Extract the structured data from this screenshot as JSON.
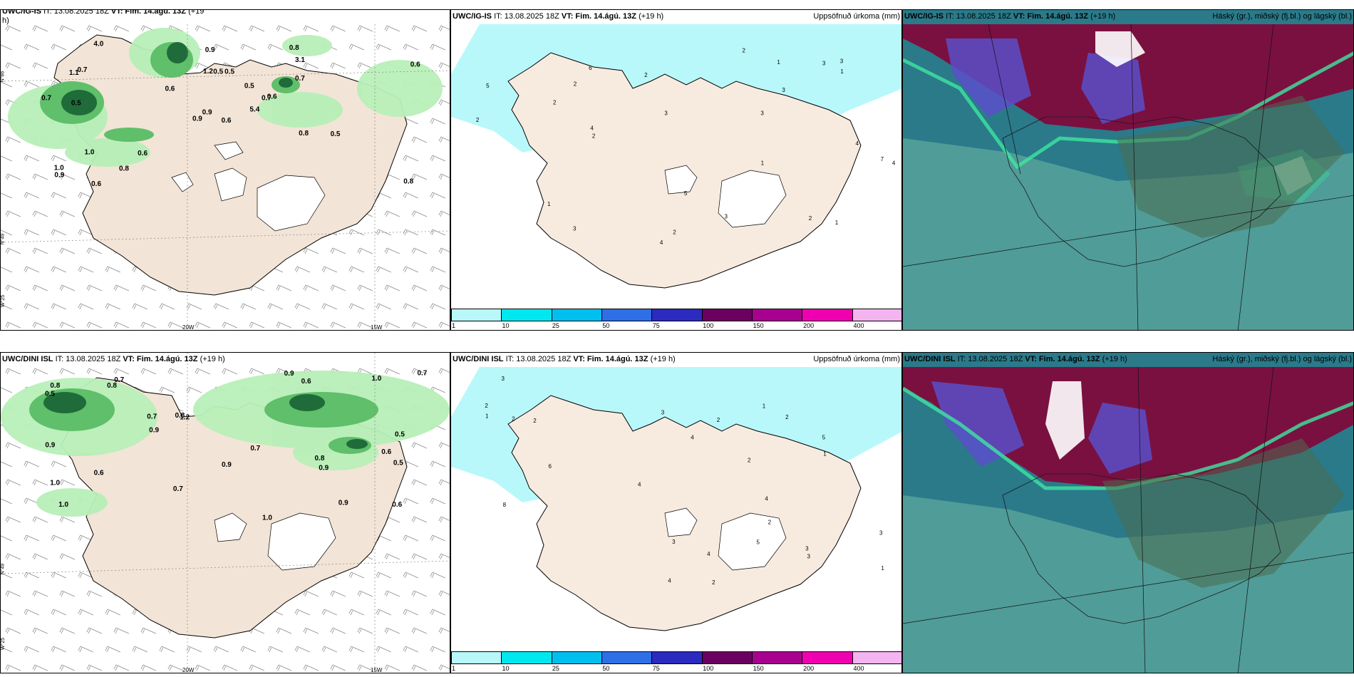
{
  "panels": [
    {
      "id": "p1",
      "model": "UWC/IG-IS",
      "run": "IT: 13.08.2025 18Z",
      "valid": "VT: Fim. 14.ágú. 13Z",
      "lead": "(+19",
      "lead2": "h)",
      "field": ""
    },
    {
      "id": "p2",
      "model": "UWC/IG-IS",
      "run": "IT: 13.08.2025 18Z",
      "valid": "VT: Fim. 14.ágú. 13Z",
      "lead": "(+19 h)",
      "field": "Uppsöfnuð úrkoma (mm)"
    },
    {
      "id": "p3",
      "model": "UWC/IG-IS",
      "run": "IT: 13.08.2025 18Z",
      "valid": "VT: Fim. 14.ágú. 13Z",
      "lead": "(+19 h)",
      "field": "Háský (gr.), miðský (fj.bl.) og lágský (bl.)"
    },
    {
      "id": "p4",
      "model": "UWC/DINI ISL",
      "run": "IT: 13.08.2025 18Z",
      "valid": "VT: Fim. 14.ágú. 13Z",
      "lead": "(+19 h)",
      "field": ""
    },
    {
      "id": "p5",
      "model": "UWC/DINI ISL",
      "run": "IT: 13.08.2025 18Z",
      "valid": "VT: Fim. 14.ágú. 13Z",
      "lead": "(+19 h)",
      "field": "Uppsöfnuð úrkoma (mm)"
    },
    {
      "id": "p6",
      "model": "UWC/DINI ISL",
      "run": "IT: 13.08.2025 18Z",
      "valid": "VT: Fim. 14.ágú. 13Z",
      "lead": "(+19 h)",
      "field": "Háský (gr.), miðský (fj.bl.) og lágský (bl.)"
    }
  ],
  "colorbar": {
    "labels": [
      "1",
      "10",
      "25",
      "50",
      "75",
      "100",
      "150",
      "200",
      "400"
    ],
    "colors": [
      "#b8f8fb",
      "#00e8ef",
      "#00bfef",
      "#2f6fe6",
      "#2b2bbf",
      "#6b0060",
      "#a8008f",
      "#ef00b0",
      "#f4b4f0"
    ]
  },
  "axes": {
    "lon1": "20W",
    "lon2": "15W",
    "lat_left_a": "N°66",
    "lat_left_b": "N°49",
    "lat_left_c": "W°25"
  },
  "precip_labels_top": [
    "0.6",
    "1.1",
    "0.9",
    "1.0",
    "0.7",
    "0.6",
    "0.8",
    "0.5",
    "3.1",
    "5.4",
    "4.0",
    "0.8",
    "0.5",
    "0.6",
    "0.9",
    "0.7",
    "0.6",
    "1.2",
    "0.5",
    "1.0",
    "0.6",
    "0.9",
    "0.8",
    "0.5",
    "0.6",
    "0.5",
    "0.7",
    "0.9",
    "0.7",
    "0.8"
  ],
  "precip_labels_bottom": [
    "0.8",
    "0.6",
    "1.0",
    "0.7",
    "1.2",
    "0.9",
    "1.0",
    "0.6",
    "0.7",
    "1.0",
    "0.5",
    "0.9",
    "0.8",
    "0.6",
    "0.7",
    "0.5",
    "0.9",
    "0.7",
    "0.8",
    "0.6",
    "0.7",
    "1.0",
    "0.9",
    "0.5",
    "0.9",
    "0.8",
    "0.9"
  ],
  "accum_labels_top": [
    "5",
    "2",
    "3",
    "2",
    "3",
    "4",
    "1",
    "2",
    "3",
    "4",
    "7",
    "6",
    "3",
    "1",
    "2",
    "3",
    "4",
    "2",
    "1",
    "3",
    "2",
    "4",
    "3",
    "5",
    "1",
    "2",
    "1",
    "2"
  ],
  "accum_labels_bottom": [
    "4",
    "3",
    "2",
    "5",
    "4",
    "3",
    "2",
    "1",
    "6",
    "8",
    "3",
    "2",
    "4",
    "2",
    "1",
    "2",
    "3",
    "5",
    "4",
    "2",
    "1",
    "3",
    "2",
    "4",
    "1",
    "2",
    "3"
  ]
}
